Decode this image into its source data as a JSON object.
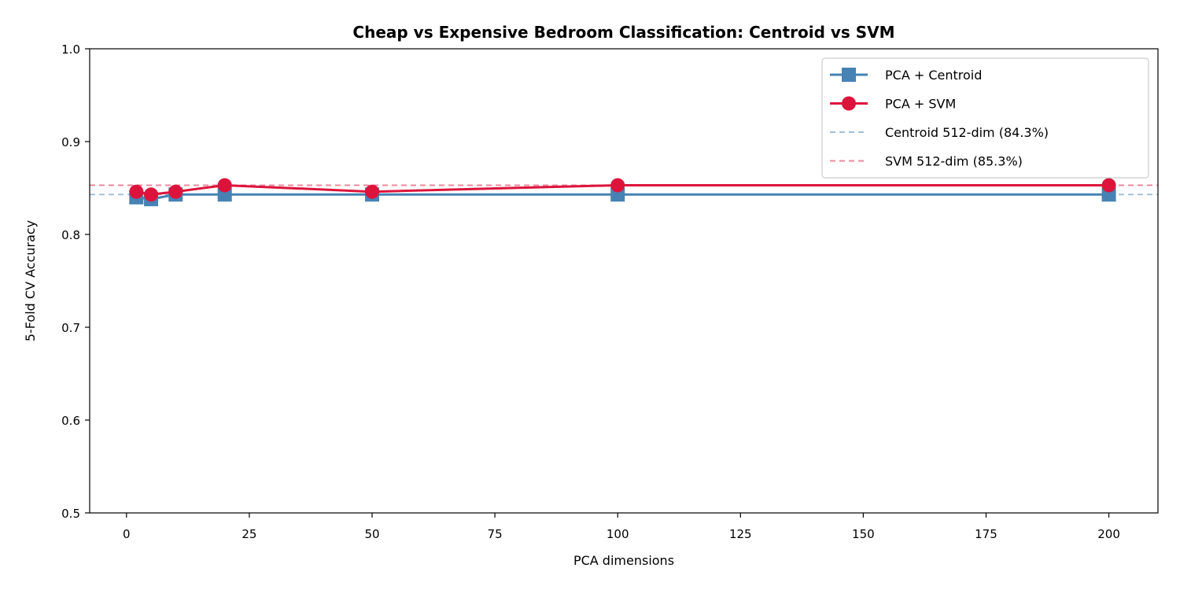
{
  "chart_data": {
    "type": "line",
    "title": "Cheap vs Expensive Bedroom Classification: Centroid vs SVM",
    "xlabel": "PCA dimensions",
    "ylabel": "5-Fold CV Accuracy",
    "xlim": [
      -7.5,
      210
    ],
    "ylim": [
      0.5,
      1.0
    ],
    "xticks": [
      0,
      25,
      50,
      75,
      100,
      125,
      150,
      175,
      200
    ],
    "yticks": [
      0.5,
      0.6,
      0.7,
      0.8,
      0.9,
      1.0
    ],
    "x": [
      2,
      5,
      10,
      20,
      50,
      100,
      200
    ],
    "series": [
      {
        "name": "PCA + Centroid",
        "marker": "square",
        "color": "#4682b4",
        "values": [
          0.84,
          0.838,
          0.843,
          0.843,
          0.843,
          0.843,
          0.843
        ]
      },
      {
        "name": "PCA + SVM",
        "marker": "circle",
        "color": "#dc143c",
        "values": [
          0.846,
          0.843,
          0.846,
          0.853,
          0.846,
          0.853,
          0.853
        ]
      }
    ],
    "reference_lines": [
      {
        "name": "Centroid 512-dim (84.3%)",
        "value": 0.843,
        "color": "#4682b4",
        "style": "dashed"
      },
      {
        "name": "SVM 512-dim (85.3%)",
        "value": 0.853,
        "color": "#dc143c",
        "style": "dashed"
      }
    ],
    "grid": false,
    "legend_position": "top-right"
  }
}
